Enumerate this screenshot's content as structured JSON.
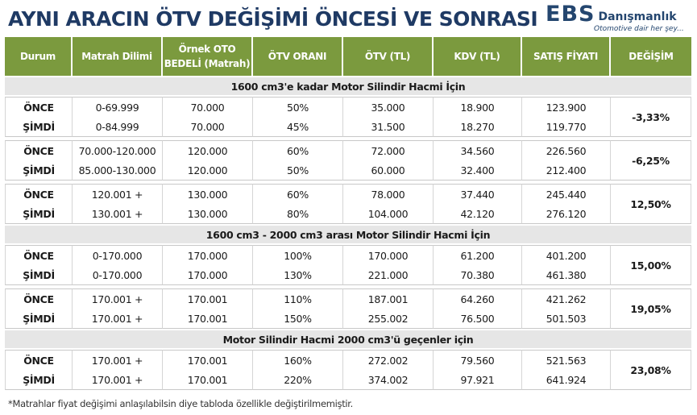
{
  "title": "AYNI ARACIN ÖTV DEĞİŞİMİ ÖNCESİ VE SONRASI",
  "logo": {
    "brand": "EBS",
    "name": "Danışmanlık",
    "tagline": "Otomotive dair her şey..."
  },
  "table": {
    "headers": [
      "Durum",
      "Matrah Dilimi",
      "Örnek OTO BEDELİ (Matrah)",
      "ÖTV ORANI",
      "ÖTV (TL)",
      "KDV (TL)",
      "SATIŞ FİYATI",
      "DEĞİŞİM"
    ],
    "sections": [
      {
        "title": "1600 cm3'e kadar Motor Silindir Hacmi İçin",
        "groups": [
          {
            "change": "-3,33%",
            "rows": [
              {
                "state": "ÖNCE",
                "bracket": "0-69.999",
                "base": "70.000",
                "rate": "50%",
                "otv": "35.000",
                "kdv": "18.900",
                "price": "123.900"
              },
              {
                "state": "ŞİMDİ",
                "bracket": "0-84.999",
                "base": "70.000",
                "rate": "45%",
                "otv": "31.500",
                "kdv": "18.270",
                "price": "119.770"
              }
            ]
          },
          {
            "change": "-6,25%",
            "rows": [
              {
                "state": "ÖNCE",
                "bracket": "70.000-120.000",
                "base": "120.000",
                "rate": "60%",
                "otv": "72.000",
                "kdv": "34.560",
                "price": "226.560"
              },
              {
                "state": "ŞİMDİ",
                "bracket": "85.000-130.000",
                "base": "120.000",
                "rate": "50%",
                "otv": "60.000",
                "kdv": "32.400",
                "price": "212.400"
              }
            ]
          },
          {
            "change": "12,50%",
            "rows": [
              {
                "state": "ÖNCE",
                "bracket": "120.001 +",
                "base": "130.000",
                "rate": "60%",
                "otv": "78.000",
                "kdv": "37.440",
                "price": "245.440"
              },
              {
                "state": "ŞİMDİ",
                "bracket": "130.001 +",
                "base": "130.000",
                "rate": "80%",
                "otv": "104.000",
                "kdv": "42.120",
                "price": "276.120"
              }
            ]
          }
        ]
      },
      {
        "title": "1600 cm3 - 2000 cm3 arası Motor Silindir Hacmi İçin",
        "groups": [
          {
            "change": "15,00%",
            "rows": [
              {
                "state": "ÖNCE",
                "bracket": "0-170.000",
                "base": "170.000",
                "rate": "100%",
                "otv": "170.000",
                "kdv": "61.200",
                "price": "401.200"
              },
              {
                "state": "ŞİMDİ",
                "bracket": "0-170.000",
                "base": "170.000",
                "rate": "130%",
                "otv": "221.000",
                "kdv": "70.380",
                "price": "461.380"
              }
            ]
          },
          {
            "change": "19,05%",
            "rows": [
              {
                "state": "ÖNCE",
                "bracket": "170.001 +",
                "base": "170.001",
                "rate": "110%",
                "otv": "187.001",
                "kdv": "64.260",
                "price": "421.262"
              },
              {
                "state": "ŞİMDİ",
                "bracket": "170.001 +",
                "base": "170.001",
                "rate": "150%",
                "otv": "255.002",
                "kdv": "76.500",
                "price": "501.503"
              }
            ]
          }
        ]
      },
      {
        "title": "Motor Silindir Hacmi 2000 cm3'ü geçenler için",
        "groups": [
          {
            "change": "23,08%",
            "rows": [
              {
                "state": "ÖNCE",
                "bracket": "170.001 +",
                "base": "170.001",
                "rate": "160%",
                "otv": "272.002",
                "kdv": "79.560",
                "price": "521.563"
              },
              {
                "state": "ŞİMDİ",
                "bracket": "170.001 +",
                "base": "170.001",
                "rate": "220%",
                "otv": "374.002",
                "kdv": "97.921",
                "price": "641.924"
              }
            ]
          }
        ]
      }
    ]
  },
  "footnote": "*Matrahlar fiyat değişimi anlaşılabilsin diye tabloda özellikle değiştirilmemiştir.",
  "colors": {
    "header_bg": "#7b9a3e",
    "title": "#1f3a64",
    "section_bg": "#e6e6e6"
  }
}
